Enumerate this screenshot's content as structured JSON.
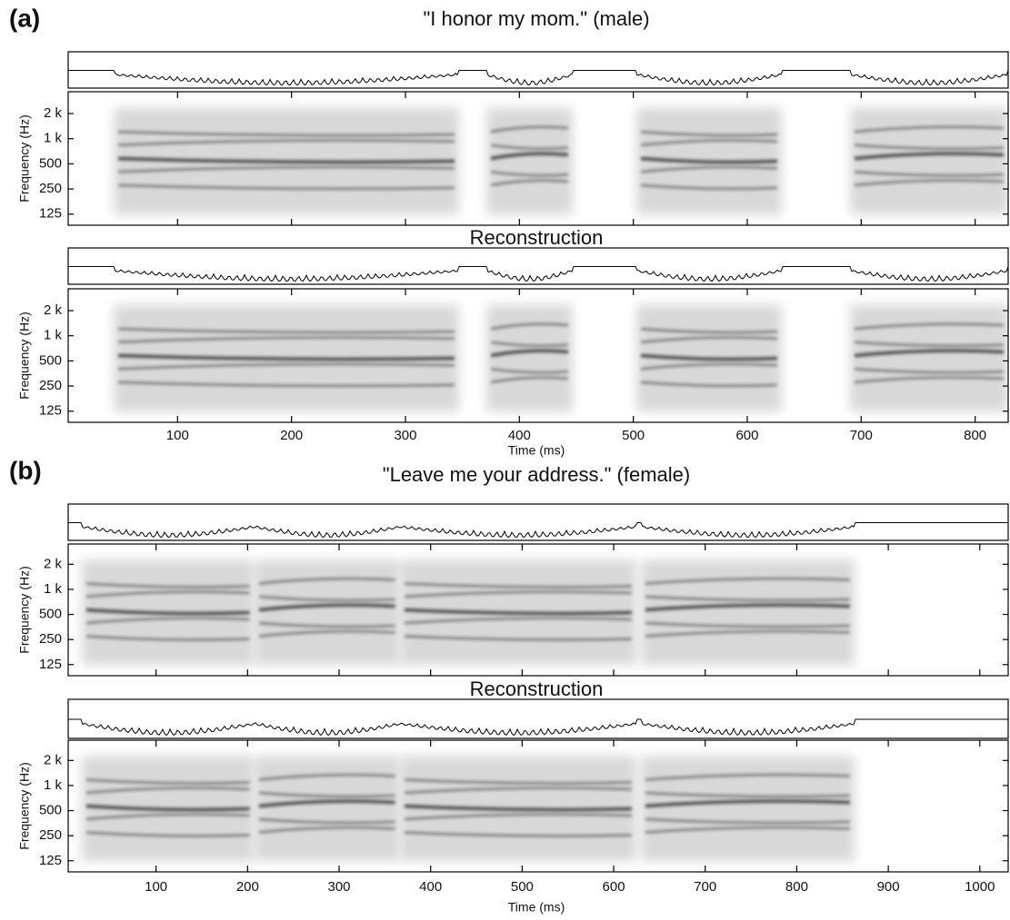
{
  "chart_data": [
    {
      "type": "spectrogram",
      "panel": "(a)",
      "title": "\"I honor my mom.\" (male)",
      "ylabel": "Frequency (Hz)",
      "log_y": true,
      "xlim": [
        4,
        829
      ],
      "xticks": [
        100,
        200,
        300,
        400,
        500,
        600,
        700,
        800
      ],
      "ylim": [
        92,
        3650
      ],
      "yticks": [
        125,
        250,
        500,
        {
          "value": 1000,
          "label": "1 k"
        },
        {
          "value": 2000,
          "label": "2 k"
        }
      ]
    },
    {
      "type": "spectrogram",
      "title": "Reconstruction",
      "ylabel": "Frequency (Hz)",
      "xlabel": "Time (ms)",
      "log_y": true,
      "xlim": [
        4,
        829
      ],
      "xticks": [
        100,
        200,
        300,
        400,
        500,
        600,
        700,
        800
      ],
      "ylim": [
        92,
        3650
      ],
      "yticks": [
        125,
        250,
        500,
        {
          "value": 1000,
          "label": "1 k"
        },
        {
          "value": 2000,
          "label": "2 k"
        }
      ]
    },
    {
      "type": "spectrogram",
      "panel": "(b)",
      "title": "\"Leave me your address.\" (female)",
      "ylabel": "Frequency (Hz)",
      "log_y": true,
      "xlim": [
        4,
        1031
      ],
      "xticks": [
        100,
        200,
        300,
        400,
        500,
        600,
        700,
        800,
        900,
        1000
      ],
      "ylim": [
        92,
        3500
      ],
      "yticks": [
        125,
        250,
        500,
        {
          "value": 1000,
          "label": "1 k"
        },
        {
          "value": 2000,
          "label": "2 k"
        }
      ]
    },
    {
      "type": "spectrogram",
      "title": "Reconstruction",
      "ylabel": "Frequency (Hz)",
      "xlabel": "Time (ms)",
      "log_y": true,
      "xlim": [
        4,
        1031
      ],
      "xticks": [
        100,
        200,
        300,
        400,
        500,
        600,
        700,
        800,
        900,
        1000
      ],
      "ylim": [
        92,
        3500
      ],
      "yticks": [
        125,
        250,
        500,
        {
          "value": 1000,
          "label": "1 k"
        },
        {
          "value": 2000,
          "label": "2 k"
        }
      ]
    }
  ]
}
